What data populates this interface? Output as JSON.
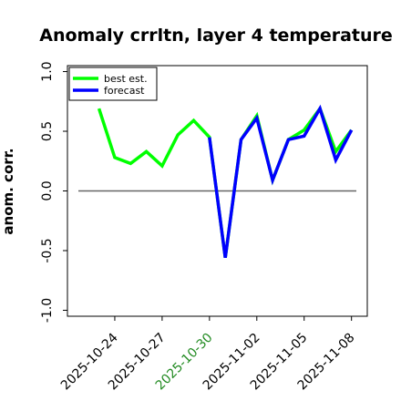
{
  "chart_data": {
    "type": "line",
    "title": "Anomaly crrltn, layer 4 temperature",
    "xlabel": "",
    "ylabel": "anom. corr.",
    "ylim": [
      -1.05,
      1.05
    ],
    "yticks": [
      -1.0,
      -0.5,
      0.0,
      0.5,
      1.0
    ],
    "ytick_labels": [
      "-1.0",
      "-0.5",
      "0.0",
      "0.5",
      "1.0"
    ],
    "x_range": [
      "2025-10-21",
      "2025-11-09"
    ],
    "xticks": [
      "2025-10-24",
      "2025-10-27",
      "2025-10-30",
      "2025-11-02",
      "2025-11-05",
      "2025-11-08"
    ],
    "xtick_labels": [
      "2025-10-24",
      "2025-10-27",
      "2025-10-30",
      "2025-11-02",
      "2025-11-05",
      "2025-11-08"
    ],
    "highlight_tick": "2025-10-30",
    "highlight_color": "#228b22",
    "grid": false,
    "legend_position": "top-left",
    "zero_line": true,
    "series": [
      {
        "name": "best est.",
        "color": "#00ff00",
        "x": [
          "2025-10-23",
          "2025-10-24",
          "2025-10-25",
          "2025-10-26",
          "2025-10-27",
          "2025-10-28",
          "2025-10-29",
          "2025-10-30",
          "2025-10-31",
          "2025-11-01",
          "2025-11-02",
          "2025-11-03",
          "2025-11-04",
          "2025-11-05",
          "2025-11-06",
          "2025-11-07",
          "2025-11-08"
        ],
        "values": [
          0.69,
          0.28,
          0.23,
          0.33,
          0.21,
          0.47,
          0.59,
          0.45,
          -0.56,
          0.43,
          0.63,
          0.09,
          0.43,
          0.51,
          0.69,
          0.33,
          0.51
        ]
      },
      {
        "name": "forecast",
        "color": "#0000ff",
        "x": [
          "2025-10-30",
          "2025-10-31",
          "2025-11-01",
          "2025-11-02",
          "2025-11-03",
          "2025-11-04",
          "2025-11-05",
          "2025-11-06",
          "2025-11-07",
          "2025-11-08"
        ],
        "values": [
          0.45,
          -0.56,
          0.43,
          0.61,
          0.09,
          0.43,
          0.46,
          0.69,
          0.26,
          0.51
        ]
      }
    ]
  }
}
